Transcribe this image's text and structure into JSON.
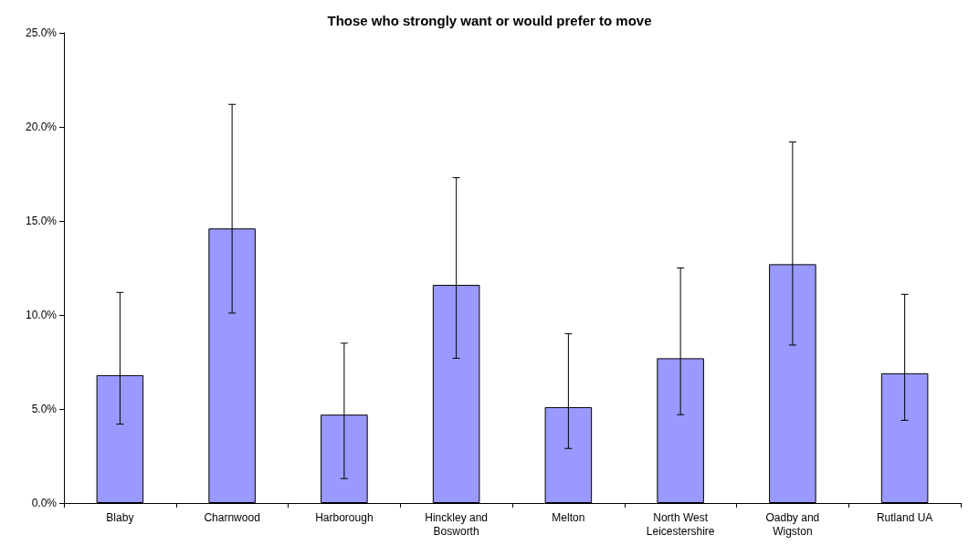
{
  "chart_data": {
    "type": "bar",
    "title": "Those who strongly want or would prefer to move",
    "categories": [
      "Blaby",
      "Charnwood",
      "Harborough",
      "Hinckley and\nBosworth",
      "Melton",
      "North West\nLeicestershire",
      "Oadby and\nWigston",
      "Rutland UA"
    ],
    "values": [
      6.8,
      14.6,
      4.7,
      11.6,
      5.1,
      7.7,
      12.7,
      6.9
    ],
    "errors": [
      [
        4.2,
        11.2
      ],
      [
        10.1,
        21.2
      ],
      [
        1.3,
        8.5
      ],
      [
        7.7,
        17.3
      ],
      [
        2.9,
        9.0
      ],
      [
        4.7,
        12.5
      ],
      [
        8.4,
        19.2
      ],
      [
        4.4,
        11.1
      ]
    ],
    "color": "#9999ff",
    "ylim": [
      0,
      25
    ],
    "yticks": [
      {
        "value": 0,
        "label": "0.0%"
      },
      {
        "value": 5,
        "label": "5.0%"
      },
      {
        "value": 10,
        "label": "10.0%"
      },
      {
        "value": 15,
        "label": "15.0%"
      },
      {
        "value": 20,
        "label": "20.0%"
      },
      {
        "value": 25,
        "label": "25.0%"
      }
    ],
    "grid": false
  }
}
